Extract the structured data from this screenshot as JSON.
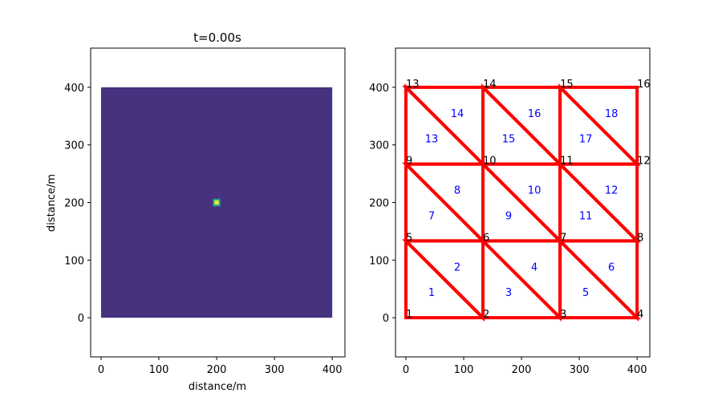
{
  "colors": {
    "field_background": "#46327e",
    "source_core": "#fde725",
    "source_ring": "#35b779",
    "source_outer": "#2c728e",
    "mesh_edge": "#ff0000",
    "element_label": "#0000ff",
    "node_label": "#000000",
    "axes": "#000000"
  },
  "chart_data": [
    {
      "type": "heatmap",
      "title": "t=0.00s",
      "xlabel": "distance/m",
      "ylabel": "distance/m",
      "xlim": [
        -18,
        422
      ],
      "ylim": [
        -68,
        468
      ],
      "x_ticks": [
        0,
        100,
        200,
        300,
        400
      ],
      "y_ticks": [
        0,
        100,
        200,
        300,
        400
      ],
      "x_tick_labels": [
        "0",
        "100",
        "200",
        "300",
        "400"
      ],
      "y_tick_labels": [
        "0",
        "100",
        "200",
        "300",
        "400"
      ],
      "field_extent": {
        "x": [
          0,
          400
        ],
        "y": [
          0,
          400
        ]
      },
      "background_value": 0,
      "source": {
        "x": 200,
        "y": 200,
        "peak_value": 1
      },
      "colormap": "viridis",
      "grid": false
    },
    {
      "type": "scatter",
      "title": "",
      "xlabel": "",
      "ylabel": "",
      "xlim": [
        -18,
        422
      ],
      "ylim": [
        -68,
        468
      ],
      "x_ticks": [
        0,
        100,
        200,
        300,
        400
      ],
      "y_ticks": [
        0,
        100,
        200,
        300,
        400
      ],
      "x_tick_labels": [
        "0",
        "100",
        "200",
        "300",
        "400"
      ],
      "y_tick_labels": [
        "0",
        "100",
        "200",
        "300",
        "400"
      ],
      "grid": false,
      "nodes": [
        {
          "id": "1",
          "x": 0,
          "y": 0
        },
        {
          "id": "2",
          "x": 133.3,
          "y": 0
        },
        {
          "id": "3",
          "x": 266.7,
          "y": 0
        },
        {
          "id": "4",
          "x": 400,
          "y": 0
        },
        {
          "id": "5",
          "x": 0,
          "y": 133.3
        },
        {
          "id": "6",
          "x": 133.3,
          "y": 133.3
        },
        {
          "id": "7",
          "x": 266.7,
          "y": 133.3
        },
        {
          "id": "8",
          "x": 400,
          "y": 133.3
        },
        {
          "id": "9",
          "x": 0,
          "y": 266.7
        },
        {
          "id": "10",
          "x": 133.3,
          "y": 266.7
        },
        {
          "id": "11",
          "x": 266.7,
          "y": 266.7
        },
        {
          "id": "12",
          "x": 400,
          "y": 266.7
        },
        {
          "id": "13",
          "x": 0,
          "y": 400
        },
        {
          "id": "14",
          "x": 133.3,
          "y": 400
        },
        {
          "id": "15",
          "x": 266.7,
          "y": 400
        },
        {
          "id": "16",
          "x": 400,
          "y": 400
        }
      ],
      "elements": [
        {
          "id": "1",
          "nodes": [
            1,
            2,
            5
          ]
        },
        {
          "id": "2",
          "nodes": [
            2,
            6,
            5
          ]
        },
        {
          "id": "3",
          "nodes": [
            2,
            3,
            6
          ]
        },
        {
          "id": "4",
          "nodes": [
            3,
            7,
            6
          ]
        },
        {
          "id": "5",
          "nodes": [
            3,
            4,
            7
          ]
        },
        {
          "id": "6",
          "nodes": [
            4,
            8,
            7
          ]
        },
        {
          "id": "7",
          "nodes": [
            5,
            6,
            9
          ]
        },
        {
          "id": "8",
          "nodes": [
            6,
            10,
            9
          ]
        },
        {
          "id": "9",
          "nodes": [
            6,
            7,
            10
          ]
        },
        {
          "id": "10",
          "nodes": [
            7,
            11,
            10
          ]
        },
        {
          "id": "11",
          "nodes": [
            7,
            8,
            11
          ]
        },
        {
          "id": "12",
          "nodes": [
            8,
            12,
            11
          ]
        },
        {
          "id": "13",
          "nodes": [
            9,
            10,
            13
          ]
        },
        {
          "id": "14",
          "nodes": [
            10,
            14,
            13
          ]
        },
        {
          "id": "15",
          "nodes": [
            10,
            11,
            14
          ]
        },
        {
          "id": "16",
          "nodes": [
            11,
            15,
            14
          ]
        },
        {
          "id": "17",
          "nodes": [
            11,
            12,
            15
          ]
        },
        {
          "id": "18",
          "nodes": [
            12,
            16,
            15
          ]
        }
      ]
    }
  ]
}
